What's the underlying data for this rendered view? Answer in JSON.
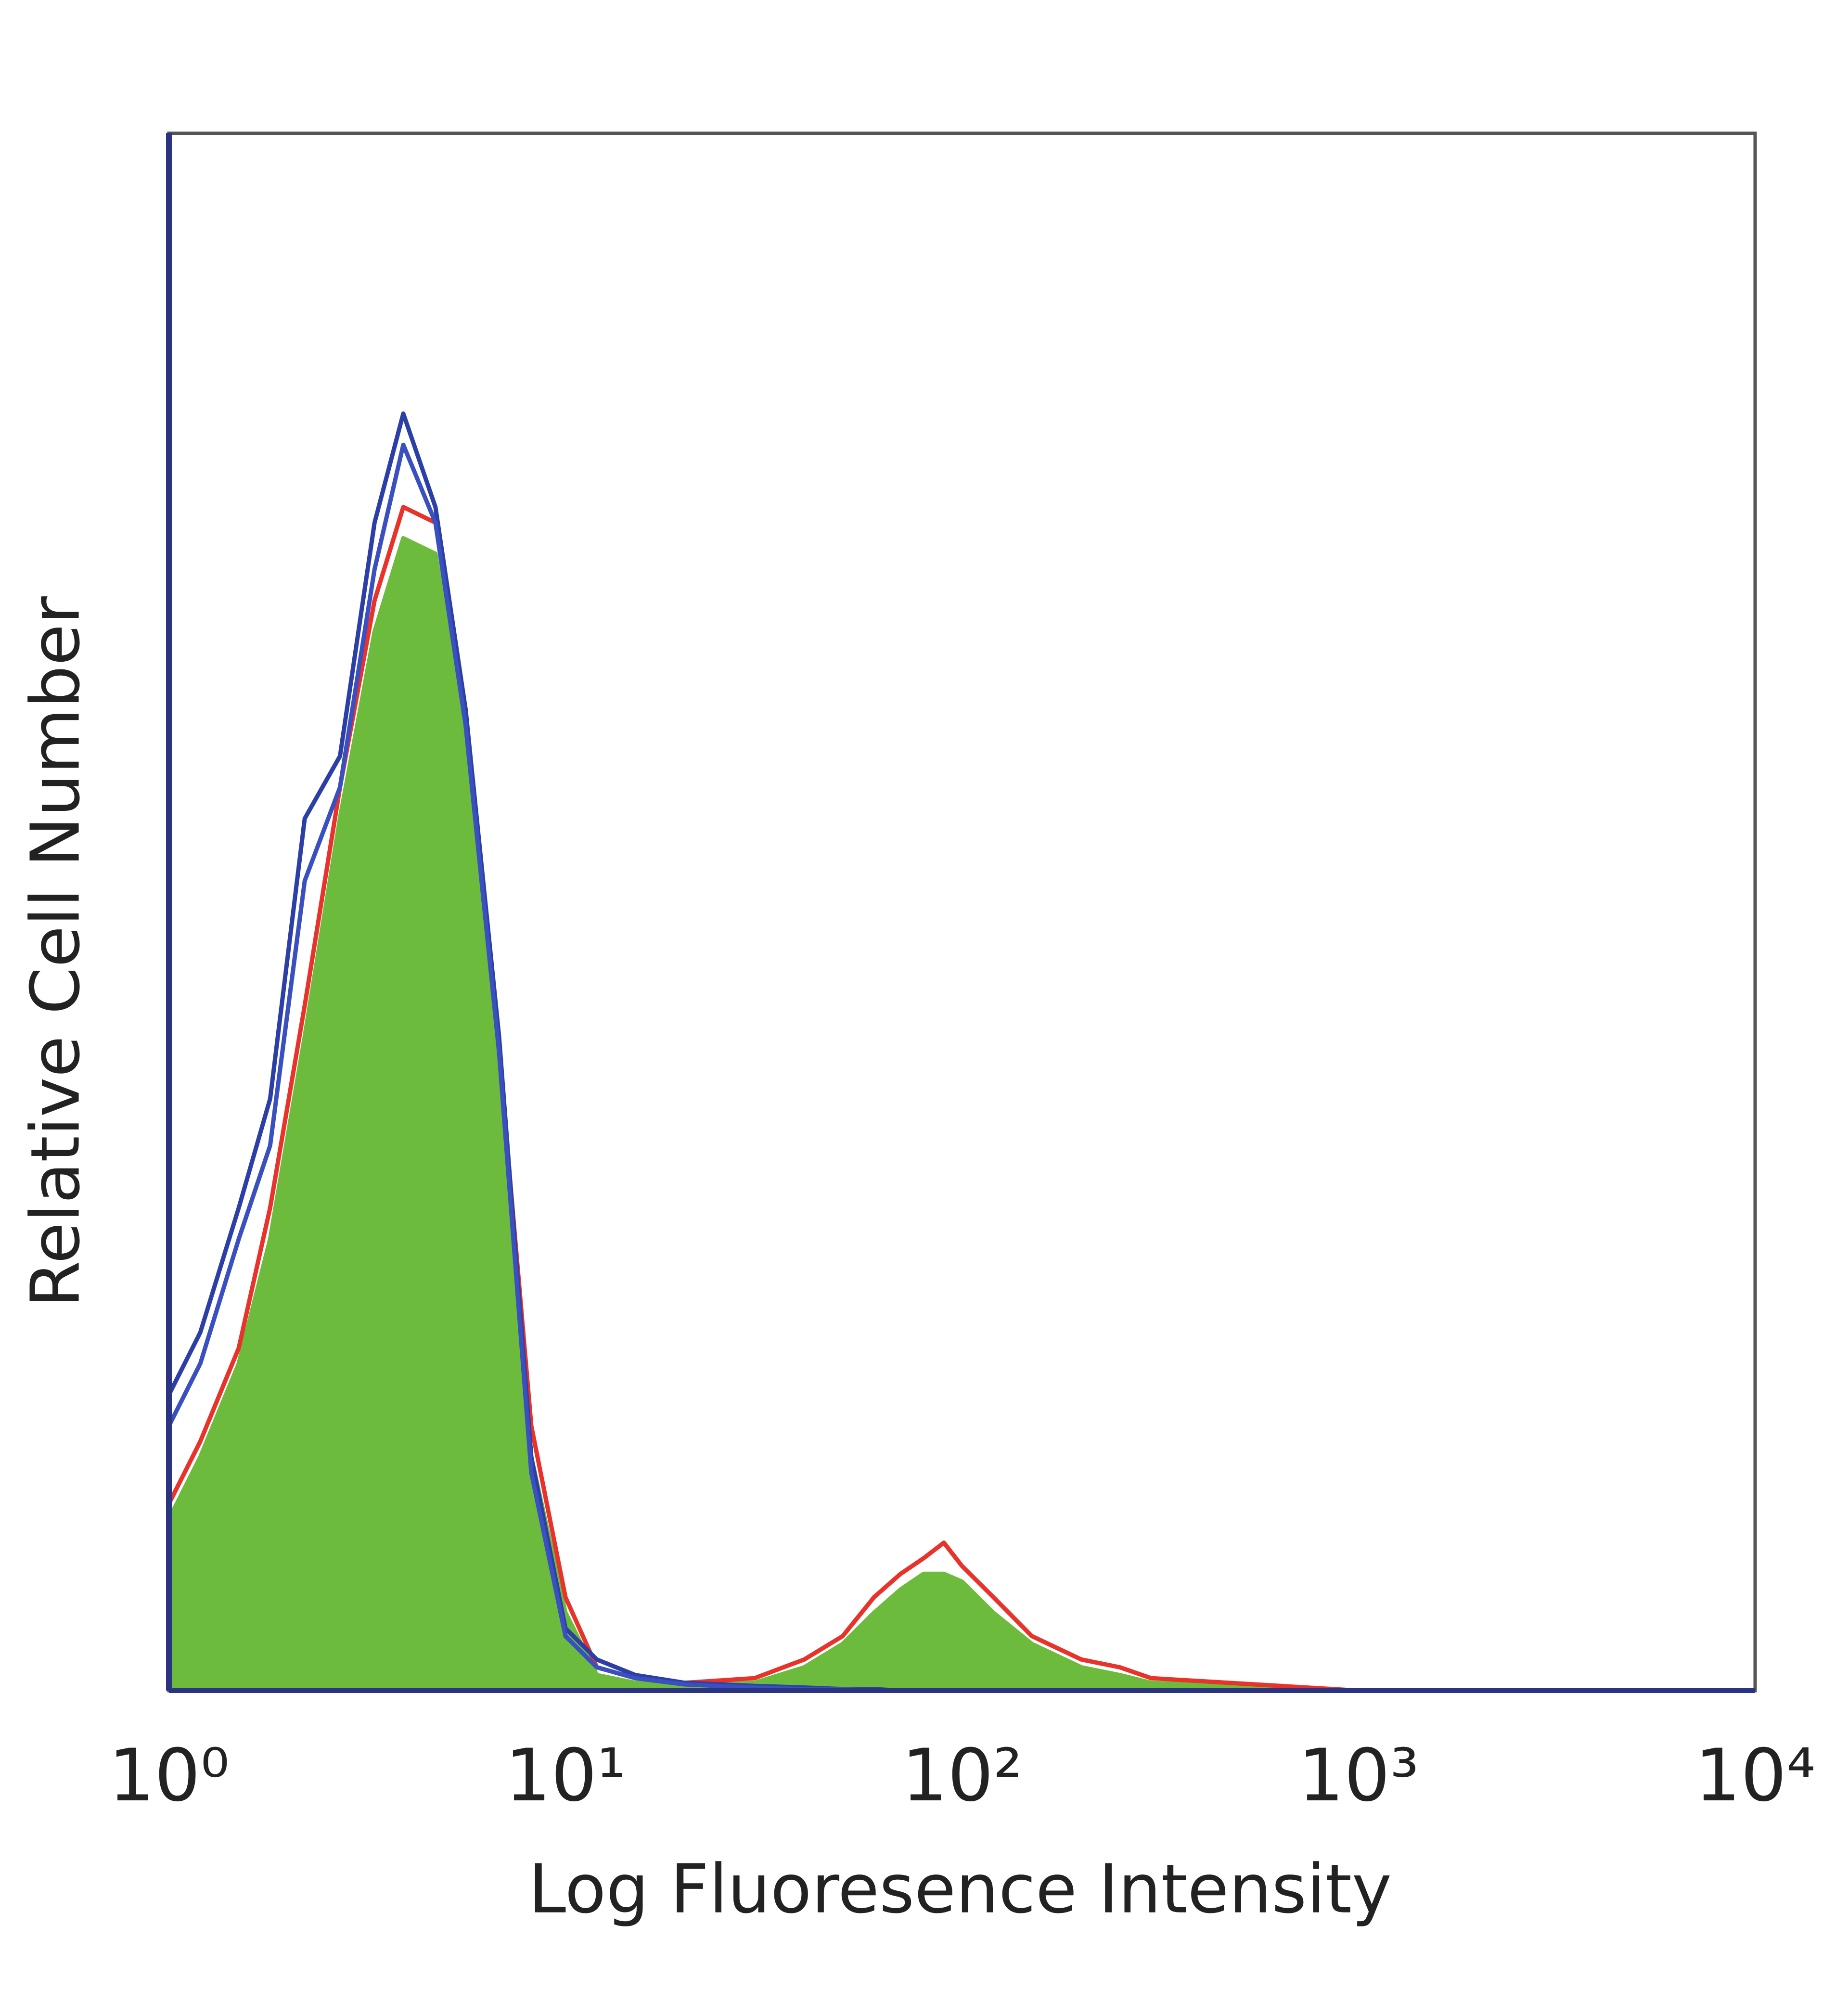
{
  "chart_data": {
    "type": "histogram-overlay",
    "x_label": "Log Fluoresence Intensity",
    "y_label": "Relative Cell Number",
    "xscale": "log",
    "xlim": [
      1,
      10000
    ],
    "ylim": [
      0,
      100
    ],
    "xticks": [
      {
        "value": 1,
        "label": "10⁰"
      },
      {
        "value": 10,
        "label": "10¹"
      },
      {
        "value": 100,
        "label": "10²"
      },
      {
        "value": 1000,
        "label": "10³"
      },
      {
        "value": 10000,
        "label": "10⁴"
      }
    ],
    "x": [
      1,
      1.2,
      1.5,
      1.8,
      2.2,
      2.7,
      3.3,
      3.9,
      4.7,
      5.6,
      6.8,
      8.2,
      10,
      12,
      15,
      20,
      30,
      40,
      50,
      60,
      70,
      80,
      90,
      100,
      120,
      150,
      200,
      250,
      300,
      1000,
      10000
    ],
    "series": [
      {
        "color": "#6cbb3c",
        "fill": true,
        "values": [
          11,
          15,
          21,
          29,
          42,
          56,
          68,
          74,
          73,
          61,
          39,
          15,
          5,
          1,
          0.5,
          0.3,
          0.5,
          1.5,
          3,
          5,
          6.5,
          7.5,
          7.5,
          7,
          5,
          3,
          1.5,
          1,
          0.5,
          0,
          0
        ]
      },
      {
        "color": "#e8322a",
        "fill": false,
        "values": [
          12,
          16,
          22,
          31,
          44,
          58,
          70,
          76,
          75,
          63,
          41,
          17,
          6,
          1.5,
          0.8,
          0.5,
          0.8,
          2,
          3.5,
          6,
          7.5,
          8.5,
          9.5,
          8,
          6,
          3.5,
          2,
          1.5,
          0.8,
          0,
          0
        ]
      },
      {
        "color": "#2b3fa6",
        "fill": false,
        "values": [
          19,
          23,
          31,
          38,
          56,
          60,
          75,
          82,
          76,
          63,
          42,
          15,
          4,
          2,
          1,
          0.5,
          0.3,
          0.2,
          0.1,
          0.1,
          0,
          0,
          0,
          0,
          0,
          0,
          0,
          0,
          0,
          0,
          0
        ]
      },
      {
        "color": "#3a4fc0",
        "fill": false,
        "values": [
          17,
          21,
          29,
          35,
          52,
          58,
          72,
          80,
          75,
          62,
          41,
          14,
          3.5,
          1.5,
          0.8,
          0.4,
          0.2,
          0.1,
          0.1,
          0,
          0,
          0,
          0,
          0,
          0,
          0,
          0,
          0,
          0,
          0,
          0
        ]
      }
    ]
  }
}
